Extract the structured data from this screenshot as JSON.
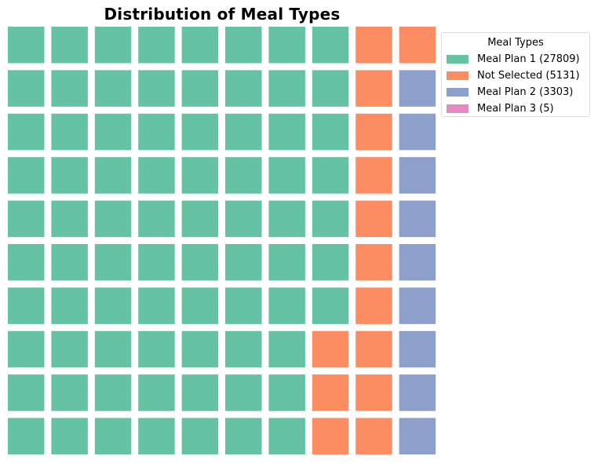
{
  "chart_data": {
    "type": "waffle",
    "title": "Distribution of Meal Types",
    "rows": 10,
    "columns": 10,
    "legend_title": "Meal Types",
    "legend_position": "upper-right outside",
    "series": [
      {
        "name": "Meal Plan 1",
        "value": 27809,
        "label": "Meal Plan 1 (27809)",
        "squares": 77,
        "color": "#66c2a5"
      },
      {
        "name": "Not Selected",
        "value": 5131,
        "label": "Not Selected (5131)",
        "squares": 14,
        "color": "#fc8d62"
      },
      {
        "name": "Meal Plan 2",
        "value": 3303,
        "label": "Meal Plan 2 (3303)",
        "squares": 9,
        "color": "#8da0cb"
      },
      {
        "name": "Meal Plan 3",
        "value": 5,
        "label": "Meal Plan 3 (5)",
        "squares": 0,
        "color": "#e78ac3"
      }
    ]
  }
}
